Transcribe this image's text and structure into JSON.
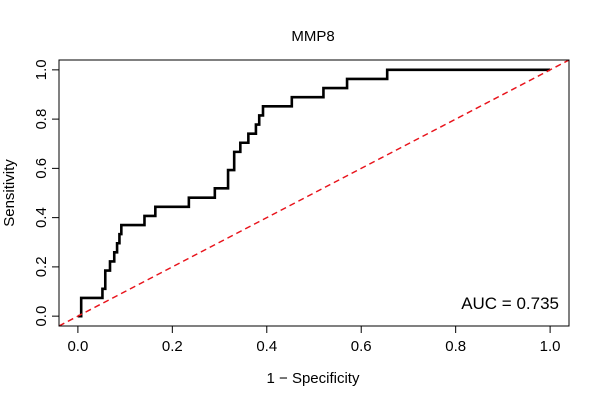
{
  "chart_data": {
    "type": "line",
    "title": "MMP8",
    "xlabel": "1 − Specificity",
    "ylabel": "Sensitivity",
    "xlim": [
      -0.04,
      1.04
    ],
    "ylim": [
      -0.04,
      1.04
    ],
    "x_ticks": [
      {
        "value": 0.0,
        "label": "0.0"
      },
      {
        "value": 0.2,
        "label": "0.2"
      },
      {
        "value": 0.4,
        "label": "0.4"
      },
      {
        "value": 0.6,
        "label": "0.6"
      },
      {
        "value": 0.8,
        "label": "0.8"
      },
      {
        "value": 1.0,
        "label": "1.0"
      }
    ],
    "y_ticks": [
      {
        "value": 0.0,
        "label": "0.0"
      },
      {
        "value": 0.2,
        "label": "0.2"
      },
      {
        "value": 0.4,
        "label": "0.4"
      },
      {
        "value": 0.6,
        "label": "0.6"
      },
      {
        "value": 0.8,
        "label": "0.8"
      },
      {
        "value": 1.0,
        "label": "1.0"
      }
    ],
    "grid": false,
    "annotation": "AUC = 0.735",
    "colors": {
      "roc": "#000000",
      "reference": "#e8131b"
    },
    "series": [
      {
        "kind": "roc-step",
        "x": [
          0.0,
          0.007,
          0.007,
          0.052,
          0.052,
          0.058,
          0.058,
          0.068,
          0.068,
          0.077,
          0.077,
          0.083,
          0.083,
          0.088,
          0.088,
          0.092,
          0.092,
          0.097,
          0.097,
          0.141,
          0.141,
          0.164,
          0.164,
          0.235,
          0.235,
          0.29,
          0.29,
          0.318,
          0.318,
          0.331,
          0.331,
          0.344,
          0.344,
          0.361,
          0.361,
          0.377,
          0.377,
          0.384,
          0.384,
          0.392,
          0.392,
          0.453,
          0.453,
          0.52,
          0.52,
          0.57,
          0.57,
          0.655,
          0.655,
          0.702,
          0.702,
          1.0
        ],
        "y": [
          0.0,
          0.0,
          0.074,
          0.074,
          0.111,
          0.111,
          0.185,
          0.185,
          0.222,
          0.222,
          0.259,
          0.259,
          0.296,
          0.296,
          0.333,
          0.333,
          0.37,
          0.37,
          0.37,
          0.37,
          0.407,
          0.407,
          0.444,
          0.444,
          0.481,
          0.481,
          0.519,
          0.519,
          0.593,
          0.593,
          0.667,
          0.667,
          0.704,
          0.704,
          0.741,
          0.741,
          0.778,
          0.778,
          0.815,
          0.815,
          0.852,
          0.852,
          0.889,
          0.889,
          0.926,
          0.926,
          0.963,
          0.963,
          1.0,
          1.0,
          1.0,
          1.0
        ]
      },
      {
        "kind": "reference-diagonal",
        "x": [
          -0.04,
          1.04
        ],
        "y": [
          -0.04,
          1.04
        ]
      }
    ]
  }
}
